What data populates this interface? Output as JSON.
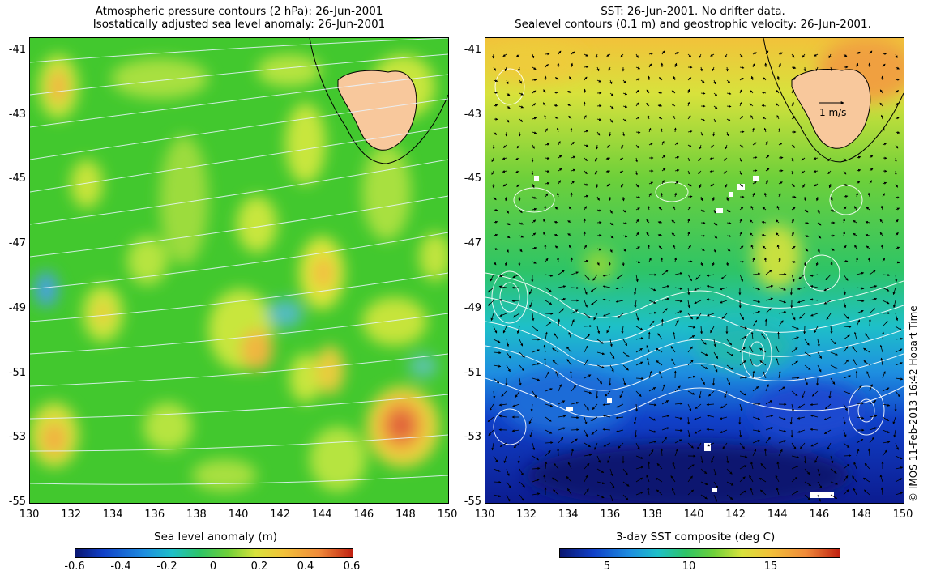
{
  "left_panel": {
    "title_line1": "Atmospheric pressure contours (2 hPa): 26-Jun-2001",
    "title_line2": "Isostatically adjusted sea level anomaly: 26-Jun-2001",
    "colorbar_label": "Sea level anomaly (m)",
    "colorbar_ticks": [
      "-0.6",
      "-0.4",
      "-0.2",
      "0",
      "0.2",
      "0.4",
      "0.6"
    ]
  },
  "right_panel": {
    "title_line1": "SST: 26-Jun-2001. No drifter data.",
    "title_line2": "Sealevel contours (0.1 m) and geostrophic velocity: 26-Jun-2001.",
    "colorbar_label": "3-day SST composite (deg C)",
    "colorbar_ticks": [
      "5",
      "10",
      "15"
    ],
    "velocity_scale_label": "1 m/s"
  },
  "axes": {
    "lat_ticks": [
      "-41",
      "-43",
      "-45",
      "-47",
      "-49",
      "-51",
      "-53",
      "-55"
    ],
    "lon_ticks": [
      "130",
      "132",
      "134",
      "136",
      "138",
      "140",
      "142",
      "144",
      "146",
      "148",
      "150"
    ]
  },
  "credit": "© IMOS 11-Feb-2013 16:42 Hobart Time",
  "colors": {
    "land": "#f8c89c",
    "background_green": "#4ccd2c",
    "contour": "#ffffff"
  }
}
